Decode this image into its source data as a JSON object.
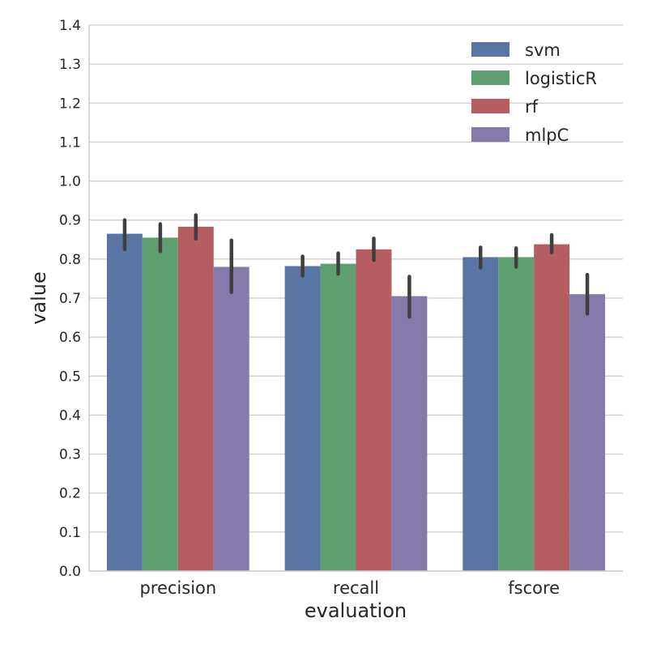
{
  "chart_data": {
    "type": "bar",
    "title": "",
    "xlabel": "evaluation",
    "ylabel": "value",
    "ylim": [
      0,
      1.4
    ],
    "yticks": [
      "0.0",
      "0.1",
      "0.2",
      "0.3",
      "0.4",
      "0.5",
      "0.6",
      "0.7",
      "0.8",
      "0.9",
      "1.0",
      "1.1",
      "1.2",
      "1.3",
      "1.4"
    ],
    "grid": "horizontal",
    "legend_position": "top-right",
    "categories": [
      "precision",
      "recall",
      "fscore"
    ],
    "series": [
      {
        "name": "svm",
        "color": "#5975a4",
        "values": [
          0.865,
          0.782,
          0.805
        ],
        "err_low": [
          0.825,
          0.757,
          0.778
        ],
        "err_high": [
          0.9,
          0.807,
          0.83
        ]
      },
      {
        "name": "logisticR",
        "color": "#5f9e6e",
        "values": [
          0.855,
          0.788,
          0.805
        ],
        "err_low": [
          0.82,
          0.762,
          0.78
        ],
        "err_high": [
          0.89,
          0.815,
          0.828
        ]
      },
      {
        "name": "rf",
        "color": "#b55d60",
        "values": [
          0.883,
          0.825,
          0.838
        ],
        "err_low": [
          0.852,
          0.797,
          0.817
        ],
        "err_high": [
          0.913,
          0.853,
          0.862
        ]
      },
      {
        "name": "mlpC",
        "color": "#857aab",
        "values": [
          0.78,
          0.705,
          0.71
        ],
        "err_low": [
          0.715,
          0.652,
          0.66
        ],
        "err_high": [
          0.848,
          0.755,
          0.76
        ]
      }
    ]
  }
}
